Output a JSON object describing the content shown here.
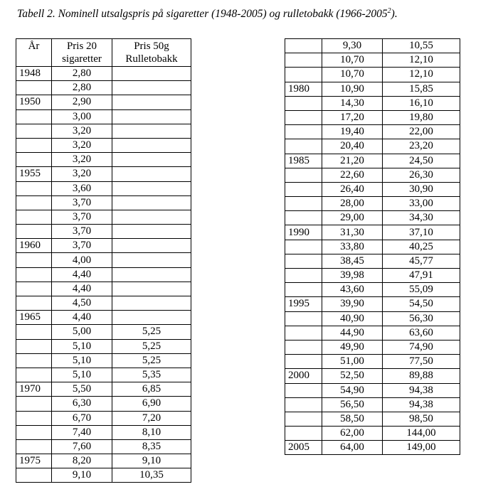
{
  "caption": {
    "text": "Tabell 2. Nominell utsalgspris på sigaretter (1948-2005) og rulletobakk (1966-2005",
    "sup": "2",
    "end": ")."
  },
  "headers": {
    "year": "År",
    "cig_line1": "Pris 20",
    "cig_line2": "sigaretter",
    "tob_line1": "Pris 50g",
    "tob_line2": "Rulletobakk"
  },
  "table_left": [
    [
      "1948",
      "2,80",
      ""
    ],
    [
      "",
      "2,80",
      ""
    ],
    [
      "1950",
      "2,90",
      ""
    ],
    [
      "",
      "3,00",
      ""
    ],
    [
      "",
      "3,20",
      ""
    ],
    [
      "",
      "3,20",
      ""
    ],
    [
      "",
      "3,20",
      ""
    ],
    [
      "1955",
      "3,20",
      ""
    ],
    [
      "",
      "3,60",
      ""
    ],
    [
      "",
      "3,70",
      ""
    ],
    [
      "",
      "3,70",
      ""
    ],
    [
      "",
      "3,70",
      ""
    ],
    [
      "1960",
      "3,70",
      ""
    ],
    [
      "",
      "4,00",
      ""
    ],
    [
      "",
      "4,40",
      ""
    ],
    [
      "",
      "4,40",
      ""
    ],
    [
      "",
      "4,50",
      ""
    ],
    [
      "1965",
      "4,40",
      ""
    ],
    [
      "",
      "5,00",
      "5,25"
    ],
    [
      "",
      "5,10",
      "5,25"
    ],
    [
      "",
      "5,10",
      "5,25"
    ],
    [
      "",
      "5,10",
      "5,35"
    ],
    [
      "1970",
      "5,50",
      "6,85"
    ],
    [
      "",
      "6,30",
      "6,90"
    ],
    [
      "",
      "6,70",
      "7,20"
    ],
    [
      "",
      "7,40",
      "8,10"
    ],
    [
      "",
      "7,60",
      "8,35"
    ],
    [
      "1975",
      "8,20",
      "9,10"
    ],
    [
      "",
      "9,10",
      "10,35"
    ]
  ],
  "table_right": [
    [
      "",
      "9,30",
      "10,55"
    ],
    [
      "",
      "10,70",
      "12,10"
    ],
    [
      "",
      "10,70",
      "12,10"
    ],
    [
      "1980",
      "10,90",
      "15,85"
    ],
    [
      "",
      "14,30",
      "16,10"
    ],
    [
      "",
      "17,20",
      "19,80"
    ],
    [
      "",
      "19,40",
      "22,00"
    ],
    [
      "",
      "20,40",
      "23,20"
    ],
    [
      "1985",
      "21,20",
      "24,50"
    ],
    [
      "",
      "22,60",
      "26,30"
    ],
    [
      "",
      "26,40",
      "30,90"
    ],
    [
      "",
      "28,00",
      "33,00"
    ],
    [
      "",
      "29,00",
      "34,30"
    ],
    [
      "1990",
      "31,30",
      "37,10"
    ],
    [
      "",
      "33,80",
      "40,25"
    ],
    [
      "",
      "38,45",
      "45,77"
    ],
    [
      "",
      "39,98",
      "47,91"
    ],
    [
      "",
      "43,60",
      "55,09"
    ],
    [
      "1995",
      "39,90",
      "54,50"
    ],
    [
      "",
      "40,90",
      "56,30"
    ],
    [
      "",
      "44,90",
      "63,60"
    ],
    [
      "",
      "49,90",
      "74,90"
    ],
    [
      "",
      "51,00",
      "77,50"
    ],
    [
      "2000",
      "52,50",
      "89,88"
    ],
    [
      "",
      "54,90",
      "94,38"
    ],
    [
      "",
      "56,50",
      "94,38"
    ],
    [
      "",
      "58,50",
      "98,50"
    ],
    [
      "",
      "62,00",
      "144,00"
    ],
    [
      "2005",
      "64,00",
      "149,00"
    ]
  ]
}
